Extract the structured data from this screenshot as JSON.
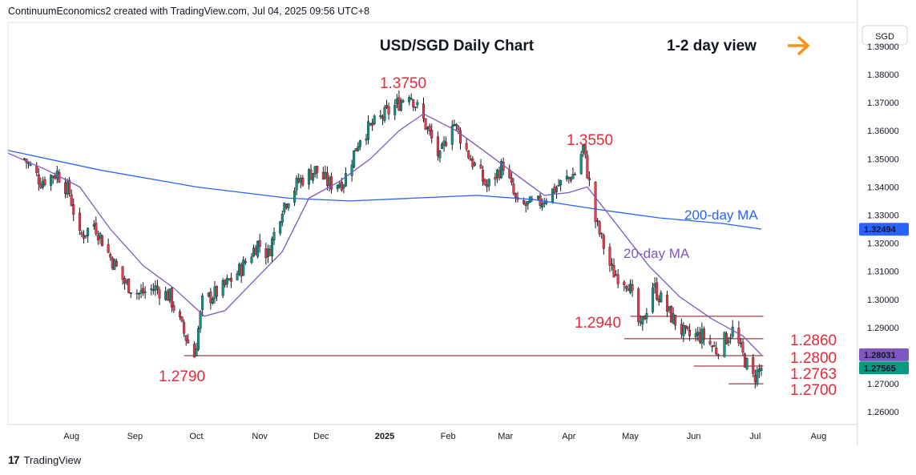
{
  "header": {
    "creator_line": "ContinuumEconomics2 created with TradingView.com, Jul 04, 2025 09:56 UTC+8"
  },
  "footer": {
    "brand": "TradingView",
    "logo_text": "17"
  },
  "chart_data": {
    "type": "candlestick",
    "title": "USD/SGD Daily Chart",
    "subtitle": "1-2 day view",
    "currency_label": "SGD",
    "arrow_icon": "right-arrow-icon",
    "ylim": [
      1.2555,
      1.3985
    ],
    "y_ticks": [
      "1.39000",
      "1.38000",
      "1.37000",
      "1.36000",
      "1.35000",
      "1.34000",
      "1.33000",
      "1.32000",
      "1.31000",
      "1.30000",
      "1.29000",
      "1.28000",
      "1.27000",
      "1.26000"
    ],
    "x_ticks": [
      {
        "label": "Aug",
        "month": "2024-08"
      },
      {
        "label": "Sep",
        "month": "2024-09"
      },
      {
        "label": "Oct",
        "month": "2024-10"
      },
      {
        "label": "Nov",
        "month": "2024-11"
      },
      {
        "label": "Dec",
        "month": "2024-12"
      },
      {
        "label": "2025",
        "month": "2025-01"
      },
      {
        "label": "Feb",
        "month": "2025-02"
      },
      {
        "label": "Mar",
        "month": "2025-03"
      },
      {
        "label": "Apr",
        "month": "2025-04"
      },
      {
        "label": "May",
        "month": "2025-05"
      },
      {
        "label": "Jun",
        "month": "2025-06"
      },
      {
        "label": "Jul",
        "month": "2025-07"
      },
      {
        "label": "Aug",
        "month": "2025-08"
      }
    ],
    "price_path": [
      [
        "2024-07-09",
        1.35
      ],
      [
        "2024-07-17",
        1.342
      ],
      [
        "2024-07-25",
        1.345
      ],
      [
        "2024-07-31",
        1.338
      ],
      [
        "2024-08-05",
        1.322
      ],
      [
        "2024-08-12",
        1.327
      ],
      [
        "2024-08-20",
        1.315
      ],
      [
        "2024-08-27",
        1.306
      ],
      [
        "2024-09-03",
        1.302
      ],
      [
        "2024-09-11",
        1.304
      ],
      [
        "2024-09-18",
        1.301
      ],
      [
        "2024-09-25",
        1.288
      ],
      [
        "2024-09-30",
        1.28
      ],
      [
        "2024-10-04",
        1.299
      ],
      [
        "2024-10-14",
        1.304
      ],
      [
        "2024-10-23",
        1.311
      ],
      [
        "2024-10-31",
        1.32
      ],
      [
        "2024-11-05",
        1.316
      ],
      [
        "2024-11-12",
        1.333
      ],
      [
        "2024-11-20",
        1.342
      ],
      [
        "2024-11-28",
        1.346
      ],
      [
        "2024-12-05",
        1.341
      ],
      [
        "2024-12-12",
        1.342
      ],
      [
        "2024-12-20",
        1.358
      ],
      [
        "2024-12-31",
        1.365
      ],
      [
        "2025-01-08",
        1.37
      ],
      [
        "2025-01-13",
        1.374
      ],
      [
        "2025-01-21",
        1.362
      ],
      [
        "2025-01-28",
        1.35
      ],
      [
        "2025-02-03",
        1.364
      ],
      [
        "2025-02-12",
        1.35
      ],
      [
        "2025-02-20",
        1.34
      ],
      [
        "2025-02-28",
        1.348
      ],
      [
        "2025-03-07",
        1.333
      ],
      [
        "2025-03-17",
        1.334
      ],
      [
        "2025-03-26",
        1.34
      ],
      [
        "2025-04-04",
        1.345
      ],
      [
        "2025-04-08",
        1.354
      ],
      [
        "2025-04-14",
        1.328
      ],
      [
        "2025-04-22",
        1.31
      ],
      [
        "2025-04-30",
        1.306
      ],
      [
        "2025-05-06",
        1.289
      ],
      [
        "2025-05-12",
        1.305
      ],
      [
        "2025-05-20",
        1.295
      ],
      [
        "2025-05-28",
        1.287
      ],
      [
        "2025-06-05",
        1.287
      ],
      [
        "2025-06-12",
        1.282
      ],
      [
        "2025-06-20",
        1.289
      ],
      [
        "2025-06-25",
        1.28
      ],
      [
        "2025-06-30",
        1.272
      ],
      [
        "2025-07-04",
        1.2757
      ]
    ],
    "series": [
      {
        "name": "200-day MA",
        "color": "#2962ff",
        "values": [
          [
            "2024-07-01",
            1.353
          ],
          [
            "2024-08-15",
            1.346
          ],
          [
            "2024-10-01",
            1.34
          ],
          [
            "2024-11-15",
            1.336
          ],
          [
            "2024-12-15",
            1.335
          ],
          [
            "2025-01-15",
            1.336
          ],
          [
            "2025-02-15",
            1.337
          ],
          [
            "2025-03-15",
            1.3355
          ],
          [
            "2025-04-15",
            1.332
          ],
          [
            "2025-05-15",
            1.329
          ],
          [
            "2025-06-15",
            1.327
          ],
          [
            "2025-07-04",
            1.325
          ]
        ]
      },
      {
        "name": "20-day MA",
        "color": "#7e57c2",
        "values": [
          [
            "2024-07-01",
            1.352
          ],
          [
            "2024-07-20",
            1.346
          ],
          [
            "2024-08-05",
            1.34
          ],
          [
            "2024-08-20",
            1.325
          ],
          [
            "2024-09-05",
            1.312
          ],
          [
            "2024-09-20",
            1.304
          ],
          [
            "2024-10-05",
            1.294
          ],
          [
            "2024-10-15",
            1.296
          ],
          [
            "2024-10-31",
            1.308
          ],
          [
            "2024-11-12",
            1.317
          ],
          [
            "2024-11-25",
            1.336
          ],
          [
            "2024-12-10",
            1.342
          ],
          [
            "2024-12-25",
            1.35
          ],
          [
            "2025-01-08",
            1.36
          ],
          [
            "2025-01-20",
            1.366
          ],
          [
            "2025-02-05",
            1.36
          ],
          [
            "2025-02-20",
            1.352
          ],
          [
            "2025-03-05",
            1.345
          ],
          [
            "2025-03-20",
            1.337
          ],
          [
            "2025-04-01",
            1.338
          ],
          [
            "2025-04-10",
            1.34
          ],
          [
            "2025-04-25",
            1.326
          ],
          [
            "2025-05-10",
            1.312
          ],
          [
            "2025-05-25",
            1.301
          ],
          [
            "2025-06-10",
            1.293
          ],
          [
            "2025-06-25",
            1.287
          ],
          [
            "2025-07-04",
            1.2803
          ]
        ]
      }
    ],
    "annotations": [
      {
        "text": "1.3750",
        "date": "2025-01-08",
        "value": 1.375
      },
      {
        "text": "1.3550",
        "date": "2025-04-06",
        "value": 1.355
      },
      {
        "text": "1.2940",
        "date": "2025-05-07",
        "value": 1.294
      },
      {
        "text": "1.2790",
        "date": "2024-10-01",
        "value": 1.279
      },
      {
        "text": "1.2860",
        "value": 1.286
      },
      {
        "text": "1.2800",
        "value": 1.28
      },
      {
        "text": "1.2763",
        "value": 1.2763
      },
      {
        "text": "1.2700",
        "value": 1.27
      }
    ],
    "horizontal_levels": [
      {
        "value": 1.294,
        "from": "2025-05-01",
        "to": "2025-07-05"
      },
      {
        "value": 1.286,
        "from": "2025-04-28",
        "to": "2025-07-05"
      },
      {
        "value": 1.28,
        "from": "2024-09-25",
        "to": "2025-07-05"
      },
      {
        "value": 1.2763,
        "from": "2025-06-01",
        "to": "2025-07-05"
      },
      {
        "value": 1.27,
        "from": "2025-06-18",
        "to": "2025-07-05"
      }
    ],
    "ma_labels": [
      {
        "text": "200-day MA",
        "color": "#2962ff"
      },
      {
        "text": "20-day MA",
        "color": "#7e57c2"
      }
    ],
    "price_badges": [
      {
        "text": "1.32494",
        "value": 1.32494,
        "color": "#2962ff"
      },
      {
        "text": "1.28031",
        "value": 1.28031,
        "color": "#7e57c2"
      },
      {
        "text": "1.27565",
        "value": 1.27565,
        "color": "#089981"
      }
    ],
    "colors": {
      "up": "#089981",
      "down": "#f23645",
      "level": "#e8283b",
      "arrow": "#f7931a"
    }
  }
}
